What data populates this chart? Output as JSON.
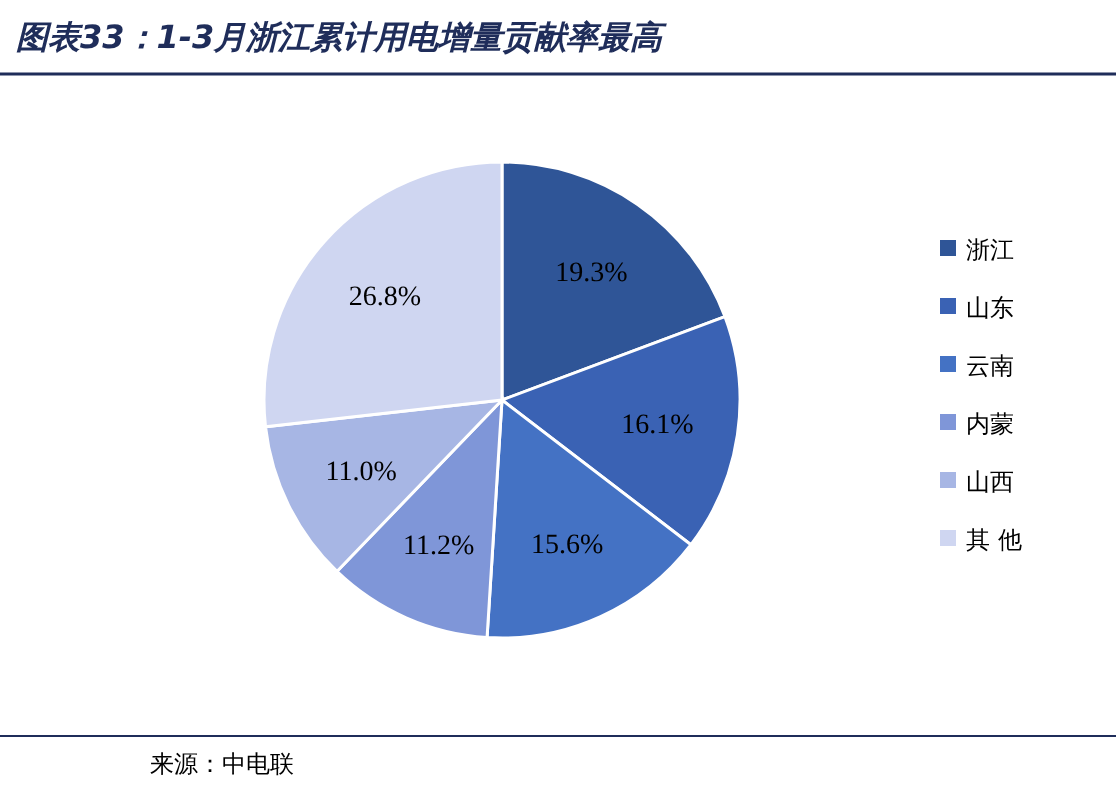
{
  "chart_data": {
    "type": "pie",
    "title": "图表33：1-3月浙江累计用电增量贡献率最高",
    "categories": [
      "浙江",
      "山东",
      "云南",
      "内蒙",
      "山西",
      "其 他"
    ],
    "values": [
      19.3,
      16.1,
      15.6,
      11.2,
      11.0,
      26.8
    ],
    "colors": [
      "#2f5597",
      "#3a62b4",
      "#4472c4",
      "#7f96d8",
      "#a7b6e4",
      "#cfd6f1"
    ],
    "value_labels": [
      "19.3%",
      "16.1%",
      "15.6%",
      "11.2%",
      "11.0%",
      "26.8%"
    ],
    "legend": "right",
    "annotations": [
      "来源：中电联"
    ]
  }
}
